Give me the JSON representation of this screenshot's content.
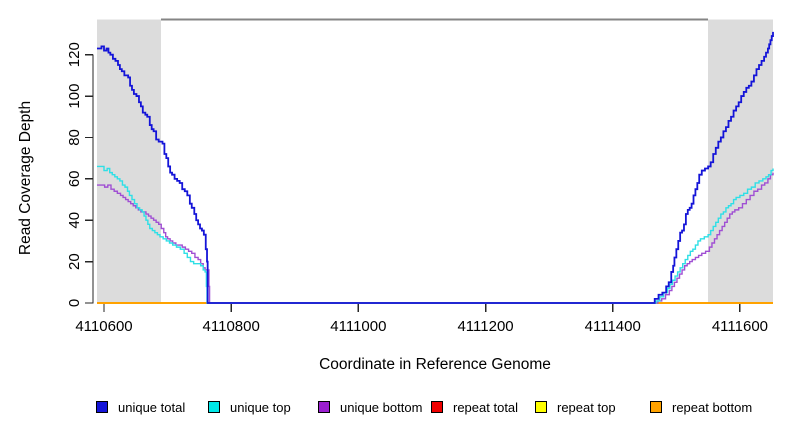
{
  "figure": {
    "background": "#FFFFFF"
  },
  "chart_data": {
    "type": "line",
    "subtype": "step",
    "title": "",
    "xlabel": "Coordinate in Reference Genome",
    "ylabel": "Read Coverage Depth",
    "xlim": [
      4110589,
      4111652
    ],
    "ylim": [
      0,
      137
    ],
    "x_ticks": [
      4110600,
      4110800,
      4111000,
      4111200,
      4111400,
      4111600
    ],
    "y_ticks": [
      0,
      20,
      40,
      60,
      80,
      100,
      120
    ],
    "grid": false,
    "legend_position": "bottom",
    "axis_color": "#262626",
    "shaded_regions": [
      {
        "name": "left-repeat-region",
        "x0": 4110589,
        "x1": 4110690,
        "color": "#DCDCDC"
      },
      {
        "name": "right-repeat-region",
        "x0": 4111550,
        "x1": 4111652,
        "color": "#DCDCDC"
      }
    ],
    "top_connector": {
      "x0": 4110690,
      "x1": 4111550,
      "y": 137,
      "color": "#858585"
    },
    "draw_order": [
      3,
      4,
      5,
      2,
      1,
      0
    ],
    "series": [
      {
        "name": "unique total",
        "color": "#1414D8",
        "width": 1.8,
        "points": [
          [
            4110589,
            123
          ],
          [
            4110596,
            124
          ],
          [
            4110600,
            122
          ],
          [
            4110604,
            123
          ],
          [
            4110607,
            121
          ],
          [
            4110610,
            120
          ],
          [
            4110614,
            118
          ],
          [
            4110618,
            117
          ],
          [
            4110622,
            115
          ],
          [
            4110625,
            113
          ],
          [
            4110628,
            112
          ],
          [
            4110632,
            110
          ],
          [
            4110638,
            109
          ],
          [
            4110641,
            105
          ],
          [
            4110644,
            103
          ],
          [
            4110647,
            101
          ],
          [
            4110651,
            100
          ],
          [
            4110655,
            97
          ],
          [
            4110658,
            95
          ],
          [
            4110661,
            92
          ],
          [
            4110665,
            91
          ],
          [
            4110668,
            90
          ],
          [
            4110672,
            86
          ],
          [
            4110675,
            84
          ],
          [
            4110678,
            83
          ],
          [
            4110682,
            79
          ],
          [
            4110686,
            78
          ],
          [
            4110692,
            77
          ],
          [
            4110695,
            72
          ],
          [
            4110698,
            70
          ],
          [
            4110701,
            66
          ],
          [
            4110704,
            63
          ],
          [
            4110707,
            62
          ],
          [
            4110711,
            60
          ],
          [
            4110715,
            59
          ],
          [
            4110719,
            58
          ],
          [
            4110723,
            55
          ],
          [
            4110727,
            54
          ],
          [
            4110731,
            52
          ],
          [
            4110735,
            48
          ],
          [
            4110738,
            46
          ],
          [
            4110742,
            43
          ],
          [
            4110745,
            40
          ],
          [
            4110748,
            38
          ],
          [
            4110751,
            36
          ],
          [
            4110754,
            35
          ],
          [
            4110757,
            33
          ],
          [
            4110760,
            26
          ],
          [
            4110762,
            20
          ],
          [
            4110763,
            0
          ],
          [
            4111460,
            0
          ],
          [
            4111466,
            2
          ],
          [
            4111472,
            4
          ],
          [
            4111478,
            5
          ],
          [
            4111484,
            8
          ],
          [
            4111488,
            10
          ],
          [
            4111492,
            15
          ],
          [
            4111495,
            18
          ],
          [
            4111497,
            22
          ],
          [
            4111500,
            26
          ],
          [
            4111503,
            30
          ],
          [
            4111506,
            34
          ],
          [
            4111509,
            35
          ],
          [
            4111512,
            38
          ],
          [
            4111515,
            43
          ],
          [
            4111518,
            45
          ],
          [
            4111521,
            46
          ],
          [
            4111524,
            48
          ],
          [
            4111527,
            52
          ],
          [
            4111530,
            55
          ],
          [
            4111533,
            58
          ],
          [
            4111536,
            62
          ],
          [
            4111540,
            64
          ],
          [
            4111545,
            65
          ],
          [
            4111550,
            66
          ],
          [
            4111554,
            68
          ],
          [
            4111558,
            72
          ],
          [
            4111562,
            75
          ],
          [
            4111566,
            78
          ],
          [
            4111570,
            80
          ],
          [
            4111574,
            83
          ],
          [
            4111578,
            85
          ],
          [
            4111582,
            88
          ],
          [
            4111586,
            90
          ],
          [
            4111590,
            93
          ],
          [
            4111594,
            95
          ],
          [
            4111598,
            97
          ],
          [
            4111602,
            100
          ],
          [
            4111606,
            102
          ],
          [
            4111610,
            104
          ],
          [
            4111614,
            105
          ],
          [
            4111618,
            107
          ],
          [
            4111622,
            110
          ],
          [
            4111626,
            113
          ],
          [
            4111630,
            115
          ],
          [
            4111634,
            117
          ],
          [
            4111638,
            119
          ],
          [
            4111641,
            121
          ],
          [
            4111644,
            123
          ],
          [
            4111646,
            125
          ],
          [
            4111648,
            127
          ],
          [
            4111650,
            129
          ],
          [
            4111652,
            131
          ]
        ]
      },
      {
        "name": "unique top",
        "color": "#2EDFE6",
        "width": 1.4,
        "points": [
          [
            4110589,
            66
          ],
          [
            4110596,
            66
          ],
          [
            4110600,
            64
          ],
          [
            4110605,
            65
          ],
          [
            4110609,
            63
          ],
          [
            4110613,
            62
          ],
          [
            4110617,
            61
          ],
          [
            4110621,
            60
          ],
          [
            4110625,
            59
          ],
          [
            4110629,
            57
          ],
          [
            4110633,
            56
          ],
          [
            4110637,
            54
          ],
          [
            4110640,
            52
          ],
          [
            4110644,
            50
          ],
          [
            4110648,
            48
          ],
          [
            4110652,
            46
          ],
          [
            4110656,
            45
          ],
          [
            4110660,
            44
          ],
          [
            4110663,
            42
          ],
          [
            4110666,
            40
          ],
          [
            4110669,
            38
          ],
          [
            4110672,
            36
          ],
          [
            4110676,
            35
          ],
          [
            4110680,
            34
          ],
          [
            4110684,
            33
          ],
          [
            4110688,
            32
          ],
          [
            4110693,
            31
          ],
          [
            4110698,
            30
          ],
          [
            4110703,
            29
          ],
          [
            4110708,
            28
          ],
          [
            4110714,
            27
          ],
          [
            4110720,
            26
          ],
          [
            4110726,
            24
          ],
          [
            4110731,
            22
          ],
          [
            4110736,
            20
          ],
          [
            4110741,
            19
          ],
          [
            4110747,
            19
          ],
          [
            4110752,
            18
          ],
          [
            4110756,
            16
          ],
          [
            4110759,
            15
          ],
          [
            4110761,
            8
          ],
          [
            4110762,
            0
          ],
          [
            4111462,
            0
          ],
          [
            4111468,
            1
          ],
          [
            4111474,
            3
          ],
          [
            4111480,
            5
          ],
          [
            4111486,
            7
          ],
          [
            4111490,
            9
          ],
          [
            4111494,
            11
          ],
          [
            4111498,
            13
          ],
          [
            4111502,
            15
          ],
          [
            4111506,
            17
          ],
          [
            4111510,
            19
          ],
          [
            4111514,
            21
          ],
          [
            4111518,
            23
          ],
          [
            4111522,
            25
          ],
          [
            4111526,
            26
          ],
          [
            4111530,
            28
          ],
          [
            4111534,
            30
          ],
          [
            4111538,
            31
          ],
          [
            4111544,
            32
          ],
          [
            4111550,
            33
          ],
          [
            4111554,
            35
          ],
          [
            4111558,
            37
          ],
          [
            4111562,
            39
          ],
          [
            4111566,
            41
          ],
          [
            4111570,
            43
          ],
          [
            4111574,
            44
          ],
          [
            4111578,
            46
          ],
          [
            4111582,
            47
          ],
          [
            4111586,
            48
          ],
          [
            4111590,
            50
          ],
          [
            4111594,
            51
          ],
          [
            4111600,
            52
          ],
          [
            4111606,
            53
          ],
          [
            4111612,
            55
          ],
          [
            4111618,
            56
          ],
          [
            4111624,
            58
          ],
          [
            4111630,
            59
          ],
          [
            4111636,
            60
          ],
          [
            4111641,
            61
          ],
          [
            4111645,
            62
          ],
          [
            4111649,
            64
          ],
          [
            4111652,
            65
          ]
        ]
      },
      {
        "name": "unique bottom",
        "color": "#A04FD3",
        "width": 1.4,
        "points": [
          [
            4110589,
            57
          ],
          [
            4110596,
            57
          ],
          [
            4110601,
            56
          ],
          [
            4110606,
            57
          ],
          [
            4110611,
            55
          ],
          [
            4110616,
            54
          ],
          [
            4110621,
            53
          ],
          [
            4110626,
            52
          ],
          [
            4110630,
            51
          ],
          [
            4110634,
            50
          ],
          [
            4110638,
            49
          ],
          [
            4110642,
            48
          ],
          [
            4110646,
            47
          ],
          [
            4110650,
            46
          ],
          [
            4110654,
            45
          ],
          [
            4110658,
            44
          ],
          [
            4110666,
            43
          ],
          [
            4110670,
            42
          ],
          [
            4110674,
            41
          ],
          [
            4110678,
            40
          ],
          [
            4110682,
            39
          ],
          [
            4110686,
            38
          ],
          [
            4110690,
            36
          ],
          [
            4110694,
            34
          ],
          [
            4110697,
            32
          ],
          [
            4110700,
            31
          ],
          [
            4110704,
            30
          ],
          [
            4110708,
            29
          ],
          [
            4110713,
            28
          ],
          [
            4110723,
            27
          ],
          [
            4110728,
            26
          ],
          [
            4110733,
            25
          ],
          [
            4110738,
            24
          ],
          [
            4110743,
            22
          ],
          [
            4110748,
            21
          ],
          [
            4110752,
            19
          ],
          [
            4110756,
            17
          ],
          [
            4110759,
            16
          ],
          [
            4110763,
            16
          ],
          [
            4110765,
            8
          ],
          [
            4110766,
            0
          ],
          [
            4111465,
            0
          ],
          [
            4111471,
            1
          ],
          [
            4111477,
            2
          ],
          [
            4111483,
            4
          ],
          [
            4111489,
            6
          ],
          [
            4111493,
            8
          ],
          [
            4111497,
            10
          ],
          [
            4111501,
            12
          ],
          [
            4111505,
            14
          ],
          [
            4111509,
            16
          ],
          [
            4111513,
            18
          ],
          [
            4111517,
            19
          ],
          [
            4111521,
            20
          ],
          [
            4111525,
            21
          ],
          [
            4111530,
            22
          ],
          [
            4111535,
            23
          ],
          [
            4111540,
            24
          ],
          [
            4111546,
            25
          ],
          [
            4111552,
            27
          ],
          [
            4111556,
            29
          ],
          [
            4111560,
            31
          ],
          [
            4111564,
            33
          ],
          [
            4111568,
            35
          ],
          [
            4111572,
            37
          ],
          [
            4111576,
            39
          ],
          [
            4111580,
            41
          ],
          [
            4111584,
            43
          ],
          [
            4111588,
            44
          ],
          [
            4111592,
            45
          ],
          [
            4111598,
            46
          ],
          [
            4111604,
            48
          ],
          [
            4111610,
            50
          ],
          [
            4111616,
            52
          ],
          [
            4111622,
            54
          ],
          [
            4111628,
            55
          ],
          [
            4111634,
            57
          ],
          [
            4111639,
            58
          ],
          [
            4111644,
            60
          ],
          [
            4111648,
            62
          ],
          [
            4111652,
            63
          ]
        ]
      },
      {
        "name": "repeat total",
        "color": "#EE0000",
        "width": 1.6,
        "points": [
          [
            4110589,
            0
          ],
          [
            4111652,
            0
          ]
        ]
      },
      {
        "name": "repeat top",
        "color": "#FFFF00",
        "width": 1.6,
        "points": [
          [
            4110589,
            0
          ],
          [
            4111652,
            0
          ]
        ]
      },
      {
        "name": "repeat bottom",
        "color": "#FFA200",
        "width": 1.9,
        "points": [
          [
            4110589,
            0
          ],
          [
            4111652,
            0
          ]
        ]
      }
    ]
  },
  "legend": {
    "items": [
      {
        "label": "unique total",
        "color": "#1414D8"
      },
      {
        "label": "unique top",
        "color": "#00E8E8"
      },
      {
        "label": "unique bottom",
        "color": "#9B1FD0"
      },
      {
        "label": "repeat total",
        "color": "#EE0000"
      },
      {
        "label": "repeat top",
        "color": "#FFFF00"
      },
      {
        "label": "repeat bottom",
        "color": "#FFA200"
      }
    ]
  }
}
